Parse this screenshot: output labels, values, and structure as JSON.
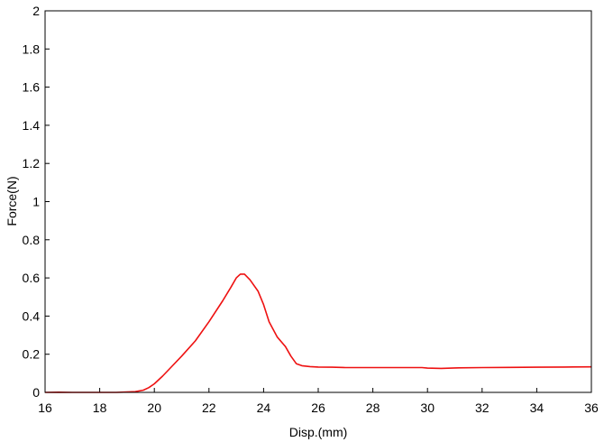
{
  "chart_data": {
    "type": "line",
    "title": "",
    "xlabel": "Disp.(mm)",
    "ylabel": "Force(N)",
    "xlim": [
      16,
      36
    ],
    "ylim": [
      0,
      2
    ],
    "grid": false,
    "x_ticks": [
      16,
      18,
      20,
      22,
      24,
      26,
      28,
      30,
      32,
      34,
      36
    ],
    "x_tick_labels": [
      "16",
      "18",
      "20",
      "22",
      "24",
      "26",
      "28",
      "30",
      "32",
      "34",
      "36"
    ],
    "y_ticks": [
      0,
      0.2,
      0.4,
      0.6,
      0.8,
      1,
      1.2,
      1.4,
      1.6,
      1.8,
      2
    ],
    "y_tick_labels": [
      "0",
      "0.2",
      "0.4",
      "0.6",
      "0.8",
      "1",
      "1.2",
      "1.4",
      "1.6",
      "1.8",
      "2"
    ],
    "series": [
      {
        "color": "#ee1111",
        "x": [
          16.0,
          16.5,
          17.0,
          18.0,
          18.6,
          19.0,
          19.3,
          19.6,
          19.8,
          20.0,
          20.3,
          20.6,
          21.0,
          21.5,
          22.0,
          22.5,
          22.8,
          23.0,
          23.15,
          23.3,
          23.5,
          23.8,
          24.0,
          24.2,
          24.5,
          24.8,
          25.0,
          25.2,
          25.4,
          25.7,
          26.0,
          26.5,
          27.0,
          28.0,
          29.0,
          29.8,
          30.0,
          30.5,
          31.0,
          32.0,
          33.0,
          34.0,
          35.0,
          36.0
        ],
        "y": [
          0.0,
          0.001,
          0.0,
          0.0,
          0.0,
          0.002,
          0.004,
          0.012,
          0.025,
          0.045,
          0.085,
          0.13,
          0.19,
          0.27,
          0.37,
          0.48,
          0.55,
          0.6,
          0.62,
          0.62,
          0.59,
          0.53,
          0.46,
          0.37,
          0.29,
          0.24,
          0.19,
          0.15,
          0.14,
          0.135,
          0.133,
          0.132,
          0.13,
          0.13,
          0.13,
          0.13,
          0.127,
          0.126,
          0.128,
          0.13,
          0.131,
          0.132,
          0.133,
          0.134
        ]
      }
    ]
  }
}
